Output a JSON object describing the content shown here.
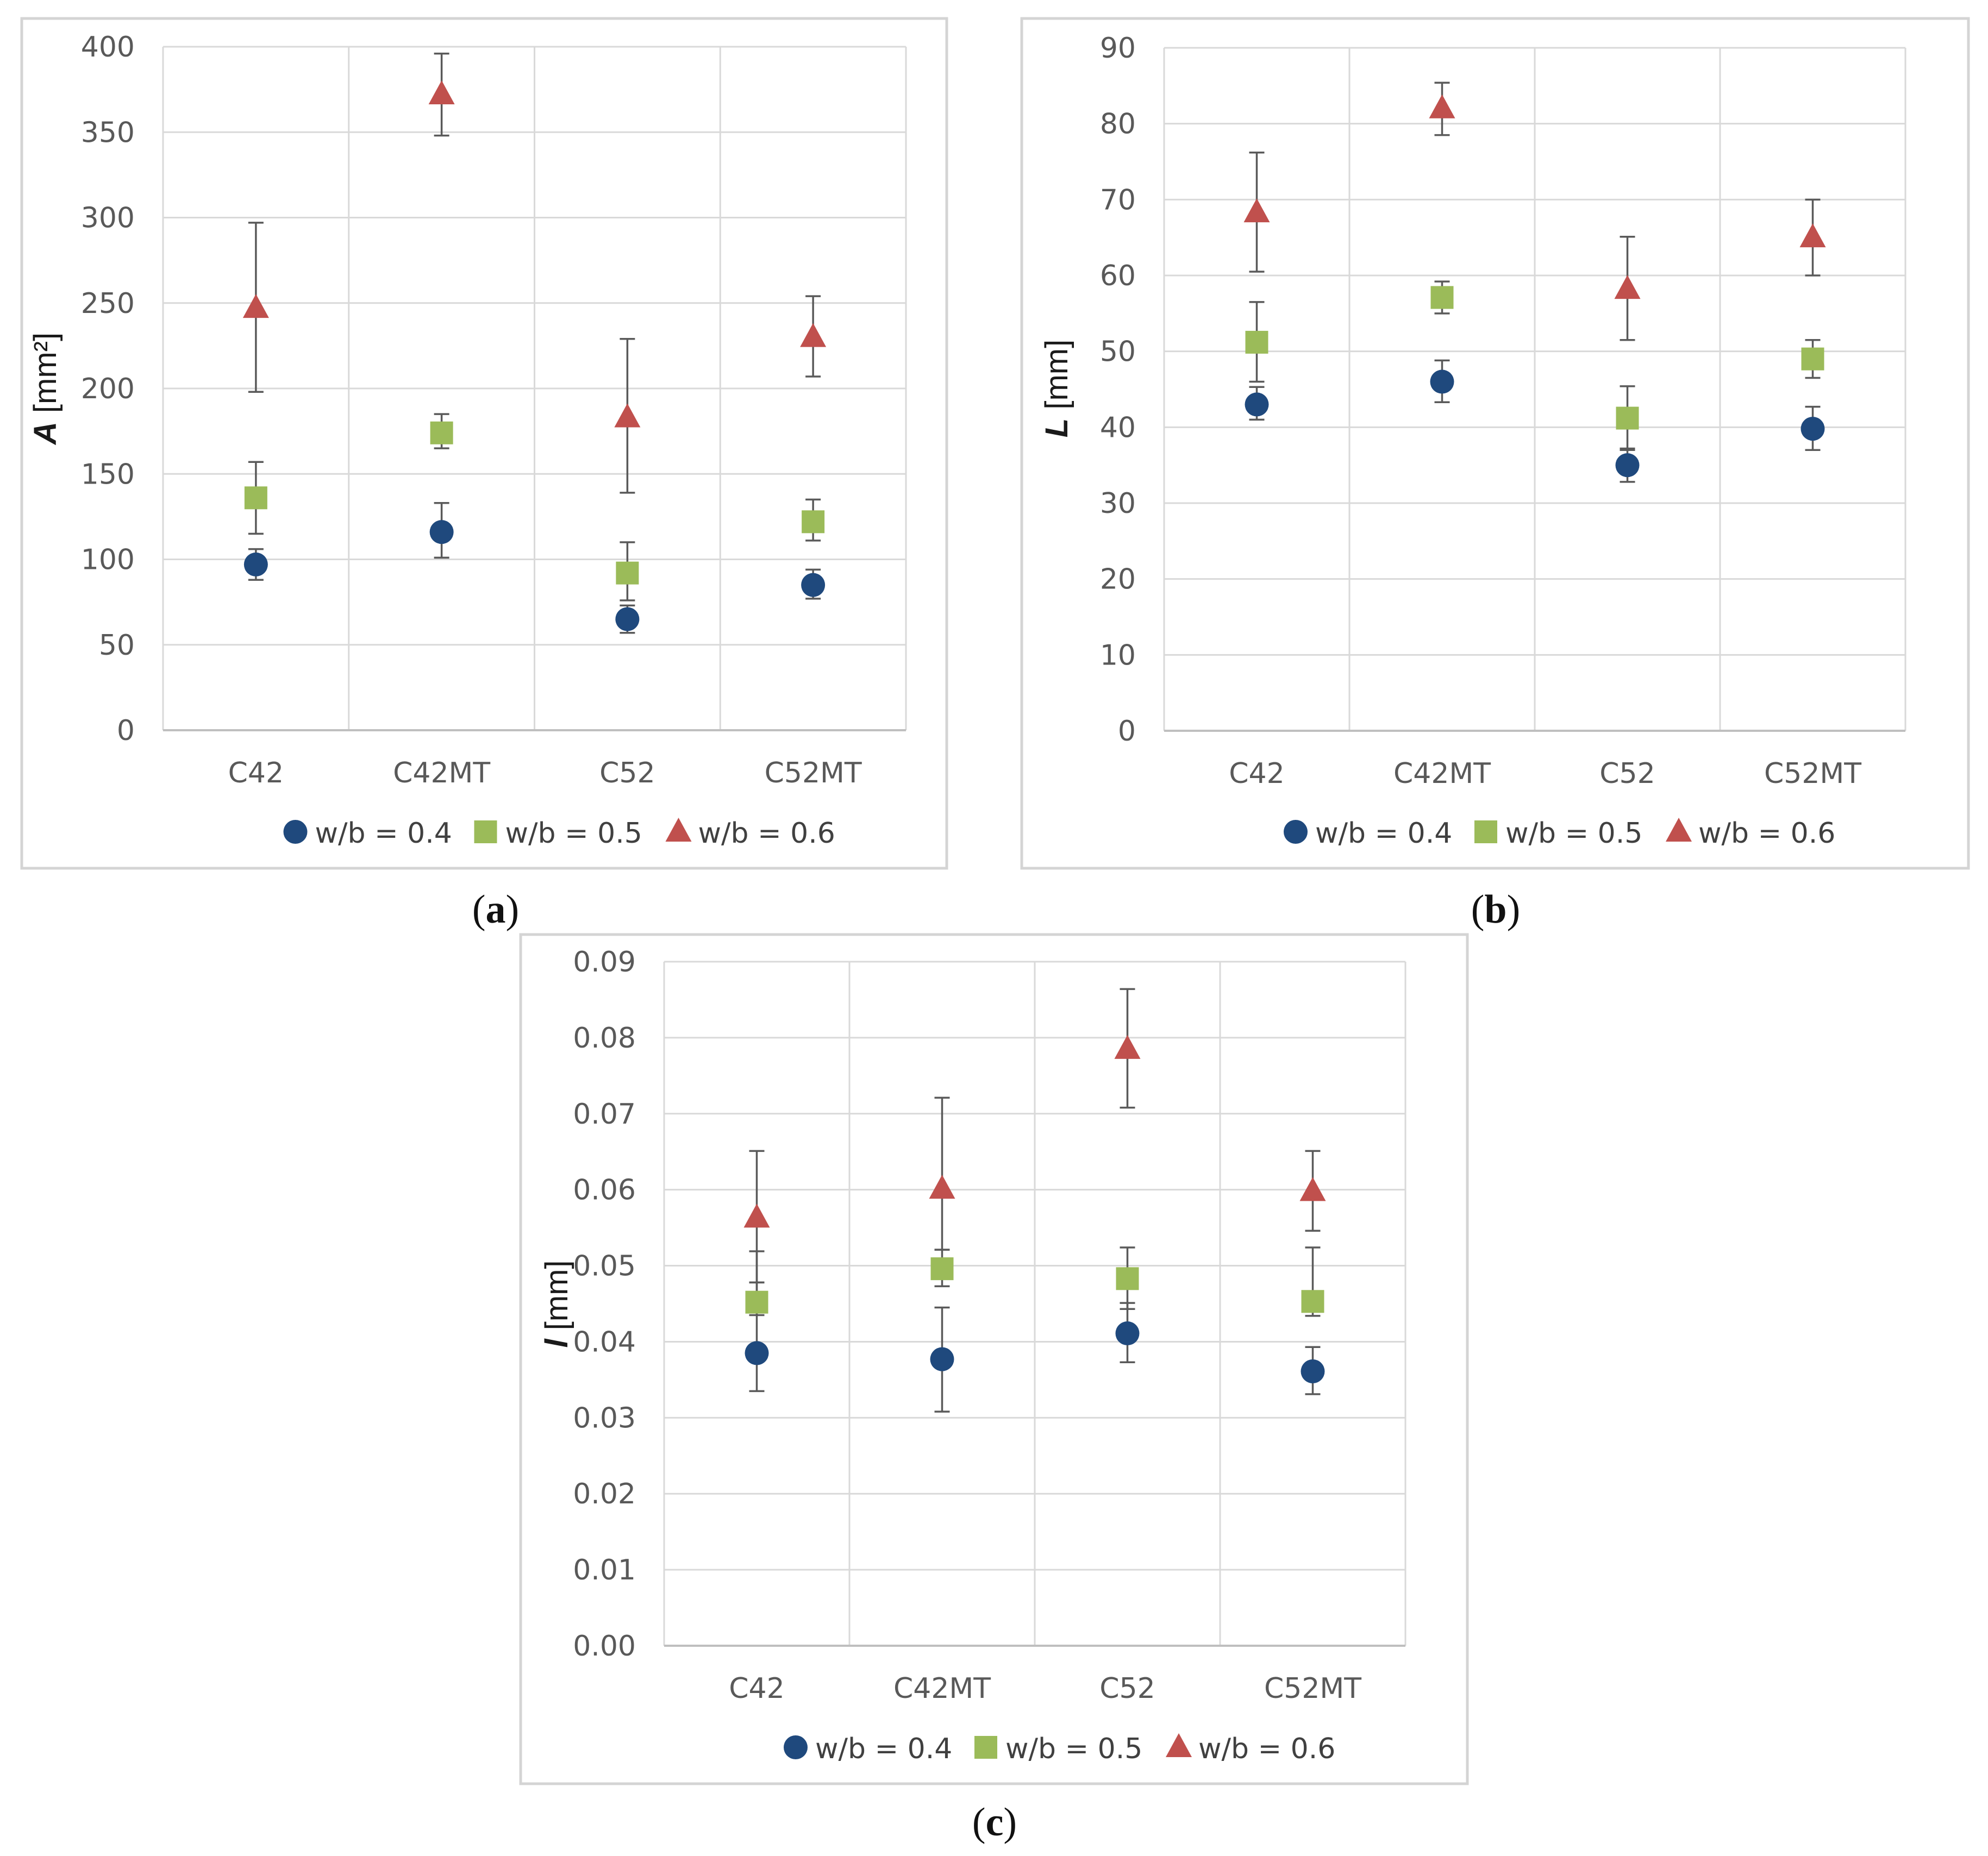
{
  "chart_data": [
    {
      "type": "scatter",
      "panel": "a",
      "caption_letter": "a",
      "ylabel_symbol": "A",
      "ylabel_unit": " [mm²]",
      "xlabel": "",
      "categories": [
        "C42",
        "C42MT",
        "C52",
        "C52MT"
      ],
      "ylim": [
        0,
        400
      ],
      "yticks": [
        "0",
        "50",
        "100",
        "150",
        "200",
        "250",
        "300",
        "350",
        "400"
      ],
      "grid": true,
      "legend_position": "bottom",
      "series": [
        {
          "name": "w/b = 0.4",
          "marker": "circle",
          "color": "#1f497d",
          "values": [
            97,
            116,
            65,
            85
          ],
          "err_low": [
            88,
            101,
            57,
            77
          ],
          "err_high": [
            106,
            133,
            73,
            94
          ]
        },
        {
          "name": "w/b = 0.5",
          "marker": "square",
          "color": "#9bbb59",
          "values": [
            136,
            174,
            92,
            122
          ],
          "err_low": [
            115,
            165,
            76,
            111
          ],
          "err_high": [
            157,
            185,
            110,
            135
          ]
        },
        {
          "name": "w/b = 0.6",
          "marker": "triangle",
          "color": "#c0504d",
          "values": [
            247,
            372,
            183,
            230
          ],
          "err_low": [
            198,
            348,
            139,
            207
          ],
          "err_high": [
            297,
            396,
            229,
            254
          ]
        }
      ]
    },
    {
      "type": "scatter",
      "panel": "b",
      "caption_letter": "b",
      "ylabel_symbol": "L",
      "ylabel_unit": " [mm]",
      "xlabel": "",
      "categories": [
        "C42",
        "C42MT",
        "C52",
        "C52MT"
      ],
      "ylim": [
        0,
        90
      ],
      "yticks": [
        "0",
        "10",
        "20",
        "30",
        "40",
        "50",
        "60",
        "70",
        "80",
        "90"
      ],
      "grid": true,
      "legend_position": "bottom",
      "series": [
        {
          "name": "w/b = 0.4",
          "marker": "circle",
          "color": "#1f497d",
          "values": [
            43,
            46,
            35,
            39.8
          ],
          "err_low": [
            41,
            43.3,
            32.8,
            37
          ],
          "err_high": [
            45.3,
            48.8,
            37.2,
            42.7
          ]
        },
        {
          "name": "w/b = 0.5",
          "marker": "square",
          "color": "#9bbb59",
          "values": [
            51.2,
            57.1,
            41.2,
            49
          ],
          "err_low": [
            46,
            55,
            37,
            46.5
          ],
          "err_high": [
            56.5,
            59.2,
            45.4,
            51.5
          ]
        },
        {
          "name": "w/b = 0.6",
          "marker": "triangle",
          "color": "#c0504d",
          "values": [
            68.3,
            82,
            58.2,
            65
          ],
          "err_low": [
            60.5,
            78.5,
            51.5,
            60
          ],
          "err_high": [
            76.2,
            85.4,
            65.1,
            70
          ]
        }
      ]
    },
    {
      "type": "scatter",
      "panel": "c",
      "caption_letter": "c",
      "ylabel_symbol": "l",
      "ylabel_unit": " [mm]",
      "xlabel": "",
      "categories": [
        "C42",
        "C42MT",
        "C52",
        "C52MT"
      ],
      "ylim": [
        0,
        0.09
      ],
      "yticks": [
        "0.00",
        "0.01",
        "0.02",
        "0.03",
        "0.04",
        "0.05",
        "0.06",
        "0.07",
        "0.08",
        "0.09"
      ],
      "grid": true,
      "legend_position": "bottom",
      "series": [
        {
          "name": "w/b = 0.4",
          "marker": "circle",
          "color": "#1f497d",
          "values": [
            0.0385,
            0.0377,
            0.0411,
            0.0361
          ],
          "err_low": [
            0.0335,
            0.0308,
            0.0373,
            0.0331
          ],
          "err_high": [
            0.0478,
            0.0445,
            0.0451,
            0.0393
          ]
        },
        {
          "name": "w/b = 0.5",
          "marker": "square",
          "color": "#9bbb59",
          "values": [
            0.0452,
            0.0496,
            0.0483,
            0.0453
          ],
          "err_low": [
            0.0435,
            0.0473,
            0.0443,
            0.0434
          ],
          "err_high": [
            0.0519,
            0.0521,
            0.0524,
            0.0524
          ]
        },
        {
          "name": "w/b = 0.6",
          "marker": "triangle",
          "color": "#c0504d",
          "values": [
            0.0563,
            0.0601,
            0.0785,
            0.0598
          ],
          "err_low": [
            0.0478,
            0.0521,
            0.0708,
            0.0546
          ],
          "err_high": [
            0.0651,
            0.0721,
            0.0864,
            0.0651
          ]
        }
      ]
    }
  ]
}
